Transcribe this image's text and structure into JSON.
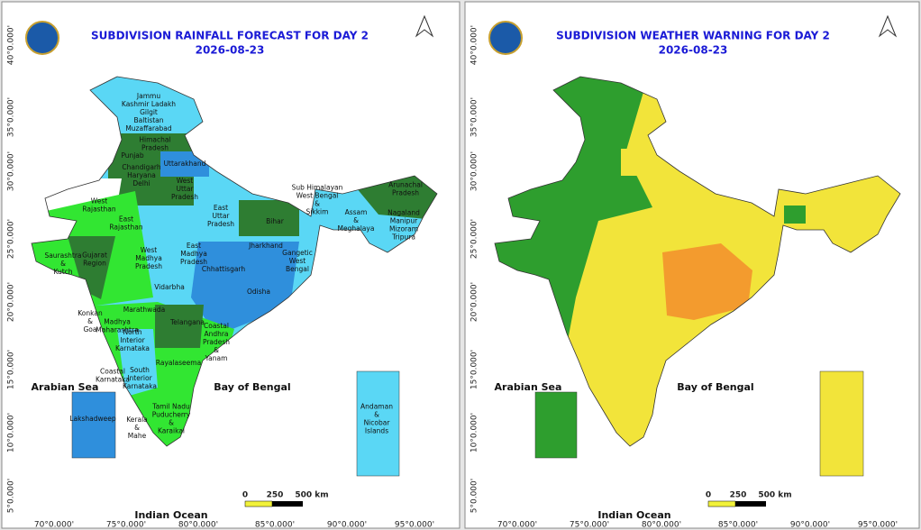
{
  "panels": [
    {
      "title": "SUBDIVISION RAINFALL FORECAST FOR DAY 2",
      "date": "2026-08-23",
      "seas": {
        "arabian": "Arabian Sea",
        "bengal": "Bay of Bengal",
        "ocean": "Indian Ocean"
      },
      "scale": [
        "0",
        "250",
        "500 km"
      ],
      "lat": [
        "40°0.000'",
        "35°0.000'",
        "30°0.000'",
        "25°0.000'",
        "20°0.000'",
        "15°0.000'",
        "10°0.000'",
        "5°0.000'"
      ],
      "lon": [
        "70°0.000'",
        "75°0.000'",
        "80°0.000'",
        "85°0.000'",
        "90°0.000'",
        "95°0.000'"
      ],
      "regions": [
        [
          "Jammu",
          "Kashmir Ladakh",
          "Gilgit",
          "Baltistan",
          "Muzaffarabad"
        ],
        [
          "Himachal",
          "Pradesh"
        ],
        [
          "Punjab"
        ],
        [
          "Uttarakhand"
        ],
        [
          "Chandigarh",
          "Haryana",
          "Delhi"
        ],
        [
          "West",
          "Uttar",
          "Pradesh"
        ],
        [
          "West",
          "Rajasthan"
        ],
        [
          "East",
          "Rajasthan"
        ],
        [
          "East",
          "Uttar",
          "Pradesh"
        ],
        [
          "Bihar"
        ],
        [
          "Sub Himalayan",
          "West Bengal",
          "&",
          "Sikkim"
        ],
        [
          "Arunachal",
          "Pradesh"
        ],
        [
          "Assam",
          "&",
          "Meghalaya"
        ],
        [
          "Nagaland",
          "Manipur",
          "Mizoram",
          "Tripura"
        ],
        [
          "West",
          "Madhya",
          "Pradesh"
        ],
        [
          "East",
          "Madhya",
          "Pradesh"
        ],
        [
          "Jharkhand"
        ],
        [
          "Gangetic",
          "West",
          "Bengal"
        ],
        [
          "Saurashtra",
          "&",
          "Kutch"
        ],
        [
          "Gujarat",
          "Region"
        ],
        [
          "Chhattisgarh"
        ],
        [
          "Odisha"
        ],
        [
          "Vidarbha"
        ],
        [
          "Konkan",
          "&",
          "Goa"
        ],
        [
          "Marathwada"
        ],
        [
          "Madhya",
          "Maharashtra"
        ],
        [
          "Telangana"
        ],
        [
          "North",
          "Interior",
          "Karnataka"
        ],
        [
          "Coastal",
          "Andhra",
          "Pradesh",
          "&",
          "Yanam"
        ],
        [
          "Rayalaseema"
        ],
        [
          "Coastal",
          "Karnataka"
        ],
        [
          "South",
          "Interior",
          "Karnataka"
        ],
        [
          "Tamil Nadu",
          "Puducherry",
          "&",
          "Karaikal"
        ],
        [
          "Kerala",
          "&",
          "Mahe"
        ],
        [
          "Lakshadweep"
        ],
        [
          "Andaman",
          "&",
          "Nicobar",
          "Islands"
        ]
      ]
    },
    {
      "title": "SUBDIVISION WEATHER WARNING FOR DAY 2",
      "date": "2026-08-23",
      "seas": {
        "arabian": "Arabian Sea",
        "bengal": "Bay of Bengal",
        "ocean": "Indian Ocean"
      },
      "scale": [
        "0",
        "250",
        "500 km"
      ],
      "lat": [
        "40°0.000'",
        "35°0.000'",
        "30°0.000'",
        "25°0.000'",
        "20°0.000'",
        "15°0.000'",
        "10°0.000'",
        "5°0.000'"
      ],
      "lon": [
        "70°0.000'",
        "75°0.000'",
        "80°0.000'",
        "85°0.000'",
        "90°0.000'",
        "95°0.000'"
      ]
    }
  ]
}
